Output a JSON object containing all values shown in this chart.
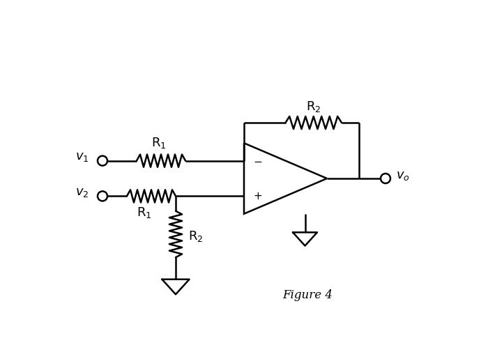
{
  "fig_width": 7.0,
  "fig_height": 5.05,
  "dpi": 100,
  "bg_color": "#ffffff",
  "line_color": "#000000",
  "line_width": 1.8,
  "figure_label": "Figure 4"
}
